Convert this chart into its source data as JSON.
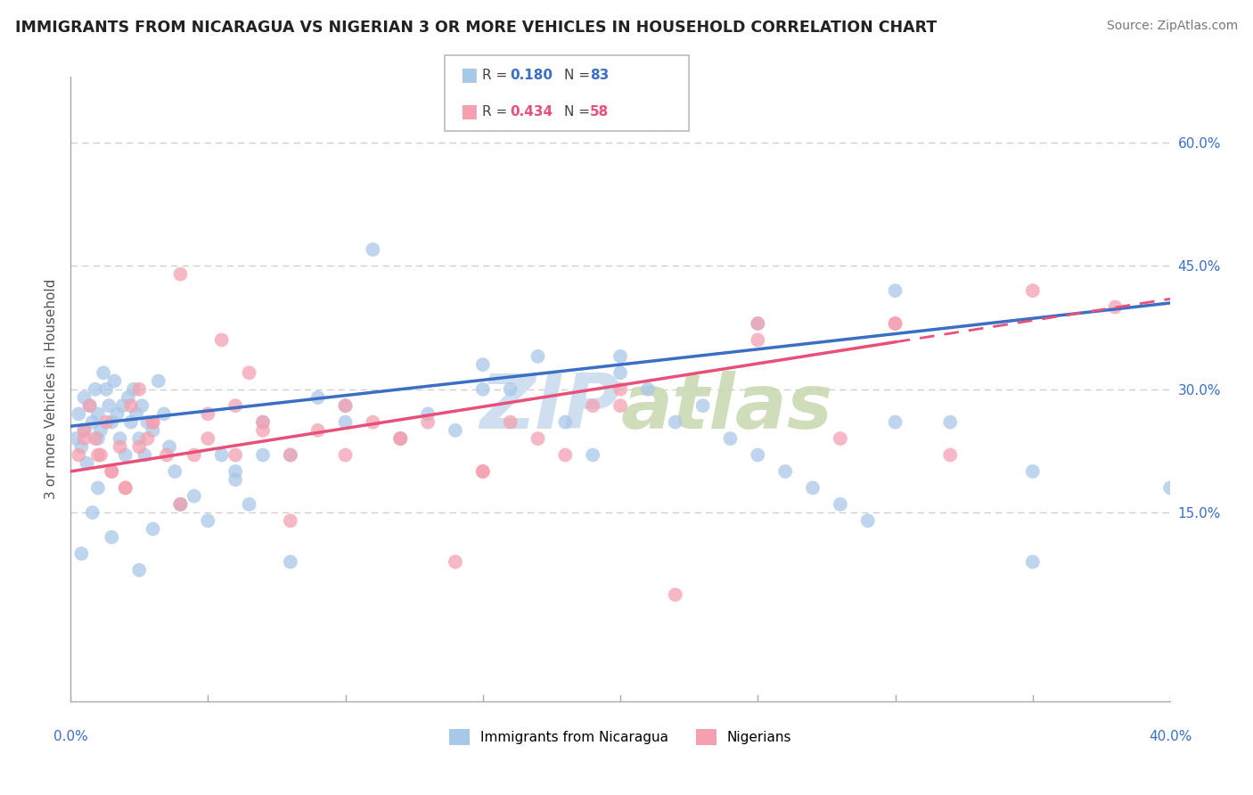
{
  "title": "IMMIGRANTS FROM NICARAGUA VS NIGERIAN 3 OR MORE VEHICLES IN HOUSEHOLD CORRELATION CHART",
  "source": "Source: ZipAtlas.com",
  "ylabel_label": "3 or more Vehicles in Household",
  "x_min": 0.0,
  "x_max": 40.0,
  "y_min": -8.0,
  "y_max": 68.0,
  "color_blue": "#a8c8e8",
  "color_pink": "#f4a0b0",
  "color_blue_line": "#3a6fc4",
  "color_pink_line": "#e8507a",
  "watermark_color": "#d0dff0",
  "blue_x": [
    0.2,
    0.3,
    0.4,
    0.5,
    0.5,
    0.6,
    0.7,
    0.8,
    0.9,
    1.0,
    1.0,
    1.1,
    1.2,
    1.3,
    1.4,
    1.5,
    1.6,
    1.7,
    1.8,
    1.9,
    2.0,
    2.1,
    2.2,
    2.3,
    2.4,
    2.5,
    2.6,
    2.7,
    2.8,
    3.0,
    3.2,
    3.4,
    3.6,
    3.8,
    4.0,
    4.5,
    5.0,
    5.5,
    6.0,
    6.5,
    7.0,
    8.0,
    9.0,
    10.0,
    11.0,
    12.0,
    13.0,
    14.0,
    15.0,
    16.0,
    17.0,
    18.0,
    19.0,
    20.0,
    21.0,
    22.0,
    23.0,
    24.0,
    25.0,
    26.0,
    27.0,
    28.0,
    29.0,
    30.0,
    32.0,
    35.0,
    0.4,
    0.8,
    1.0,
    1.5,
    2.5,
    3.0,
    4.0,
    6.0,
    7.0,
    8.0,
    10.0,
    15.0,
    20.0,
    25.0,
    30.0,
    35.0,
    40.0
  ],
  "blue_y": [
    24,
    27,
    23,
    25,
    29,
    21,
    28,
    26,
    30,
    24,
    27,
    25,
    32,
    30,
    28,
    26,
    31,
    27,
    24,
    28,
    22,
    29,
    26,
    30,
    27,
    24,
    28,
    22,
    26,
    25,
    31,
    27,
    23,
    20,
    16,
    17,
    14,
    22,
    20,
    16,
    26,
    22,
    29,
    28,
    47,
    24,
    27,
    25,
    33,
    30,
    34,
    26,
    22,
    32,
    30,
    26,
    28,
    24,
    22,
    20,
    18,
    16,
    14,
    26,
    26,
    20,
    10,
    15,
    18,
    12,
    8,
    13,
    16,
    19,
    22,
    9,
    26,
    30,
    34,
    38,
    42,
    9,
    18
  ],
  "pink_x": [
    0.3,
    0.5,
    0.7,
    0.9,
    1.1,
    1.3,
    1.5,
    1.8,
    2.0,
    2.2,
    2.5,
    2.8,
    3.0,
    3.5,
    4.0,
    4.5,
    5.0,
    5.5,
    6.0,
    6.5,
    7.0,
    8.0,
    9.0,
    10.0,
    11.0,
    12.0,
    13.0,
    14.0,
    15.0,
    16.0,
    17.0,
    18.0,
    19.0,
    20.0,
    22.0,
    25.0,
    28.0,
    30.0,
    32.0,
    0.5,
    1.0,
    1.5,
    2.0,
    2.5,
    3.0,
    4.0,
    5.0,
    6.0,
    7.0,
    8.0,
    10.0,
    12.0,
    15.0,
    20.0,
    25.0,
    30.0,
    35.0,
    38.0
  ],
  "pink_y": [
    22,
    25,
    28,
    24,
    22,
    26,
    20,
    23,
    18,
    28,
    30,
    24,
    26,
    22,
    44,
    22,
    24,
    36,
    28,
    32,
    26,
    22,
    25,
    28,
    26,
    24,
    26,
    9,
    20,
    26,
    24,
    22,
    28,
    30,
    5,
    38,
    24,
    38,
    22,
    24,
    22,
    20,
    18,
    23,
    26,
    16,
    27,
    22,
    25,
    14,
    22,
    24,
    20,
    28,
    36,
    38,
    42,
    40
  ],
  "blue_line_x0": 0.0,
  "blue_line_x1": 40.0,
  "blue_line_y0": 25.5,
  "blue_line_y1": 40.5,
  "pink_line_x0": 0.0,
  "pink_line_x1": 40.0,
  "pink_line_y0": 20.0,
  "pink_line_y1": 41.0,
  "pink_dash_start": 30.0
}
